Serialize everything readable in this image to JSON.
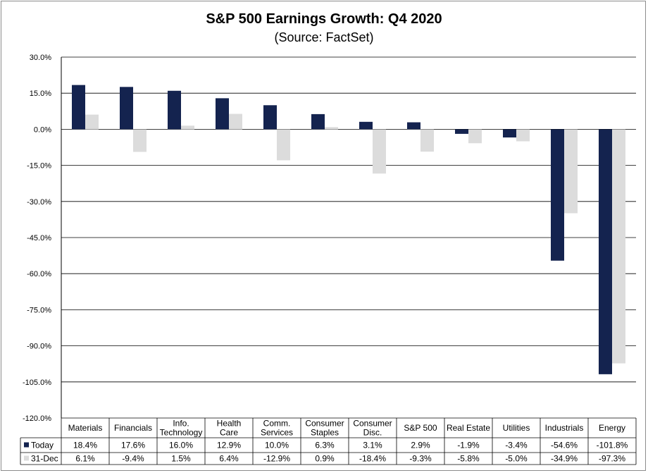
{
  "chart_data": {
    "type": "bar",
    "title": "S&P 500 Earnings Growth:  Q4 2020",
    "subtitle": "(Source: FactSet)",
    "categories": [
      [
        "Materials"
      ],
      [
        "Financials"
      ],
      [
        "Info.",
        "Technology"
      ],
      [
        "Health",
        "Care"
      ],
      [
        "Comm.",
        "Services"
      ],
      [
        "Consumer",
        "Staples"
      ],
      [
        "Consumer",
        "Disc."
      ],
      [
        "S&P 500"
      ],
      [
        "Real Estate"
      ],
      [
        "Utilities"
      ],
      [
        "Industrials"
      ],
      [
        "Energy"
      ]
    ],
    "series": [
      {
        "name": "Today",
        "color": "#14234f",
        "values": [
          18.4,
          17.6,
          16.0,
          12.9,
          10.0,
          6.3,
          3.1,
          2.9,
          -1.9,
          -3.4,
          -54.6,
          -101.8
        ],
        "labels": [
          "18.4%",
          "17.6%",
          "16.0%",
          "12.9%",
          "10.0%",
          "6.3%",
          "3.1%",
          "2.9%",
          "-1.9%",
          "-3.4%",
          "-54.6%",
          "-101.8%"
        ]
      },
      {
        "name": "31-Dec",
        "color": "#dcdcdc",
        "values": [
          6.1,
          -9.4,
          1.5,
          6.4,
          -12.9,
          0.9,
          -18.4,
          -9.3,
          -5.8,
          -5.0,
          -34.9,
          -97.3
        ],
        "labels": [
          "6.1%",
          "-9.4%",
          "1.5%",
          "6.4%",
          "-12.9%",
          "0.9%",
          "-18.4%",
          "-9.3%",
          "-5.8%",
          "-5.0%",
          "-34.9%",
          "-97.3%"
        ]
      }
    ],
    "ylim": [
      -120,
      30
    ],
    "yticks": [
      30,
      15,
      0,
      -15,
      -30,
      -45,
      -60,
      -75,
      -90,
      -105,
      -120
    ],
    "ytick_labels": [
      "30.0%",
      "15.0%",
      "0.0%",
      "-15.0%",
      "-30.0%",
      "-45.0%",
      "-60.0%",
      "-75.0%",
      "-90.0%",
      "-105.0%",
      "-120.0%"
    ],
    "grid": true,
    "legend": "data-table"
  }
}
